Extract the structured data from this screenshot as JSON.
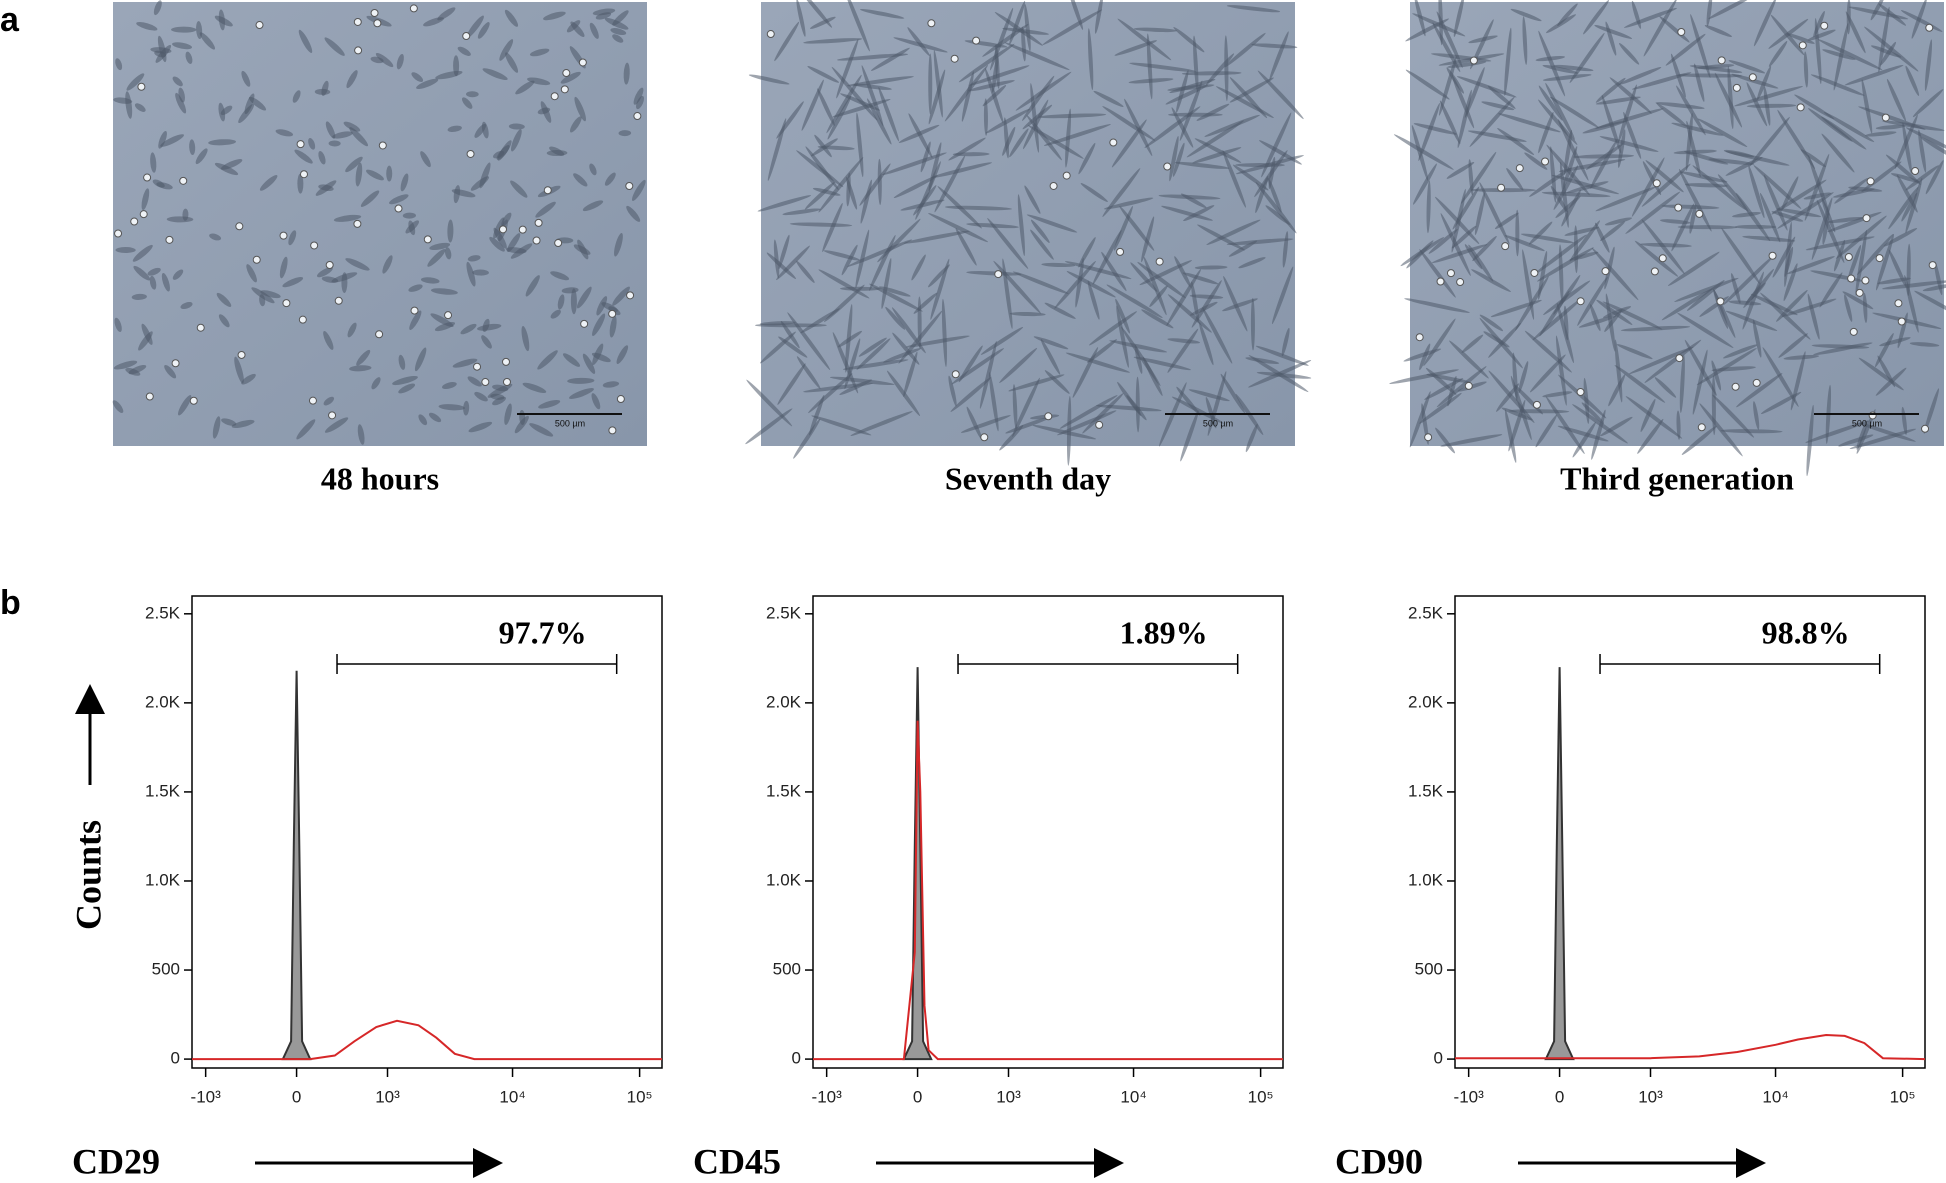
{
  "panels": {
    "a": "a",
    "b": "b"
  },
  "images": [
    {
      "caption": "48 hours",
      "scale_bar": "500 µm"
    },
    {
      "caption": "Seventh day",
      "scale_bar": "500 µm"
    },
    {
      "caption": "Third generation",
      "scale_bar": "500 µm"
    }
  ],
  "chart_data": [
    {
      "type": "line",
      "y_label": "Counts",
      "x_label": "CD29",
      "xlim": [
        -1300,
        150000
      ],
      "ylim": [
        -50,
        2600
      ],
      "xticks": [
        {
          "value": -1000,
          "label": "-10³"
        },
        0,
        {
          "value": 1000,
          "label": "10³"
        },
        {
          "value": 10000,
          "label": "10⁴"
        },
        {
          "value": 100000,
          "label": "10⁵"
        }
      ],
      "yticks": [
        0,
        500,
        {
          "value": 1000,
          "label": "1.0K"
        },
        {
          "value": 1500,
          "label": "1.5K"
        },
        {
          "value": 2000,
          "label": "2.0K"
        },
        {
          "value": 2500,
          "label": "2.5K"
        }
      ],
      "gate": {
        "value": 97.7,
        "label": "97.7%",
        "x": [
          320,
          66000
        ]
      },
      "series": [
        {
          "color": "#999999",
          "filled": true,
          "x": [
            -100,
            -40,
            -20,
            0,
            20,
            40,
            100
          ],
          "values": [
            0,
            100,
            1200,
            2180,
            1200,
            100,
            0
          ]
        },
        {
          "color": "#d62728",
          "filled": false,
          "x": [
            -1300,
            100,
            300,
            500,
            800,
            1200,
            1800,
            2500,
            3500,
            5000,
            150000
          ],
          "values": [
            0,
            0,
            20,
            100,
            180,
            215,
            190,
            120,
            30,
            0,
            0
          ]
        }
      ]
    },
    {
      "type": "line",
      "x_label": "CD45",
      "xlim": [
        -1300,
        150000
      ],
      "ylim": [
        -50,
        2600
      ],
      "xticks": [
        {
          "value": -1000,
          "label": "-10³"
        },
        0,
        {
          "value": 1000,
          "label": "10³"
        },
        {
          "value": 10000,
          "label": "10⁴"
        },
        {
          "value": 100000,
          "label": "10⁵"
        }
      ],
      "yticks": [
        0,
        500,
        {
          "value": 1000,
          "label": "1.0K"
        },
        {
          "value": 1500,
          "label": "1.5K"
        },
        {
          "value": 2000,
          "label": "2.0K"
        },
        {
          "value": 2500,
          "label": "2.5K"
        }
      ],
      "gate": {
        "value": 1.89,
        "label": "1.89%",
        "x": [
          320,
          66000
        ]
      },
      "series": [
        {
          "color": "#999999",
          "filled": true,
          "x": [
            -100,
            -40,
            -20,
            0,
            20,
            40,
            100
          ],
          "values": [
            0,
            100,
            1200,
            2200,
            1200,
            100,
            0
          ]
        },
        {
          "color": "#d62728",
          "filled": false,
          "x": [
            -1300,
            -100,
            -20,
            0,
            20,
            50,
            80,
            150,
            150000
          ],
          "values": [
            0,
            0,
            600,
            1900,
            1500,
            300,
            50,
            0,
            0
          ]
        }
      ]
    },
    {
      "type": "line",
      "x_label": "CD90",
      "xlim": [
        -1300,
        150000
      ],
      "ylim": [
        -50,
        2600
      ],
      "xticks": [
        {
          "value": -1000,
          "label": "-10³"
        },
        0,
        {
          "value": 1000,
          "label": "10³"
        },
        {
          "value": 10000,
          "label": "10⁴"
        },
        {
          "value": 100000,
          "label": "10⁵"
        }
      ],
      "yticks": [
        0,
        500,
        {
          "value": 1000,
          "label": "1.0K"
        },
        {
          "value": 1500,
          "label": "1.5K"
        },
        {
          "value": 2000,
          "label": "2.0K"
        },
        {
          "value": 2500,
          "label": "2.5K"
        }
      ],
      "gate": {
        "value": 98.8,
        "label": "98.8%",
        "x": [
          320,
          66000
        ]
      },
      "series": [
        {
          "color": "#999999",
          "filled": true,
          "x": [
            -100,
            -40,
            -20,
            0,
            20,
            40,
            100
          ],
          "values": [
            0,
            100,
            1200,
            2200,
            1200,
            100,
            0
          ]
        },
        {
          "color": "#d62728",
          "filled": false,
          "x": [
            -1300,
            1000,
            2500,
            5000,
            10000,
            15000,
            25000,
            35000,
            50000,
            70000,
            150000
          ],
          "values": [
            5,
            5,
            15,
            40,
            80,
            110,
            135,
            130,
            90,
            5,
            0
          ]
        }
      ]
    }
  ]
}
